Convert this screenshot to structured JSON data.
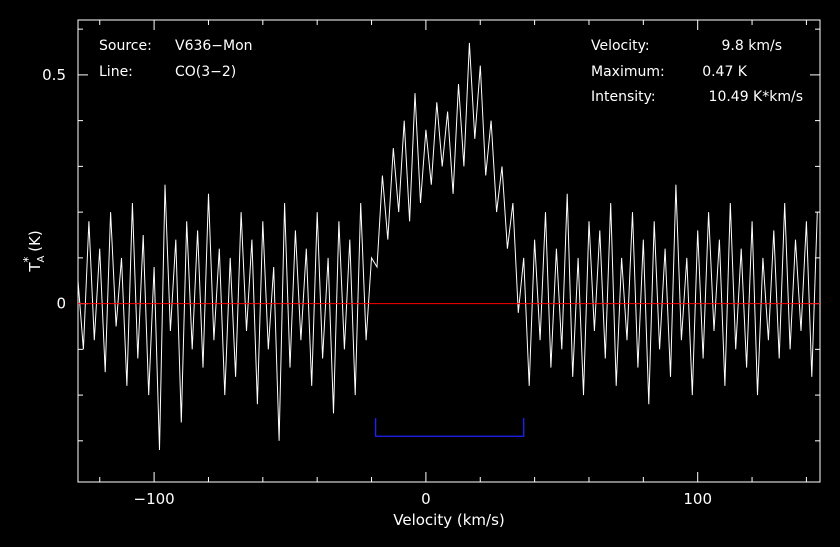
{
  "chart_data": {
    "type": "line",
    "xlabel": "Velocity (km/s)",
    "ylabel_main": "T",
    "ylabel_sub": "A",
    "ylabel_sup": "*",
    "ylabel_unit": " (K)",
    "xlim": [
      -128,
      145
    ],
    "ylim": [
      -0.39,
      0.62
    ],
    "xticks": [
      -100,
      0,
      100
    ],
    "xtick_labels": [
      "−100",
      "0",
      "100"
    ],
    "yticks": [
      0,
      0.5
    ],
    "ytick_labels": [
      "0",
      "0.5"
    ],
    "baseline_y": 0,
    "window": {
      "x_start": -18.5,
      "x_end": 36,
      "y": -0.29,
      "y_top": -0.25
    },
    "info_left": [
      {
        "key": "Source:",
        "value": "V636−Mon"
      },
      {
        "key": "Line:",
        "value": "CO(3−2)"
      }
    ],
    "info_right": [
      {
        "key": "Velocity:",
        "value": "9.8 km/s"
      },
      {
        "key": "Maximum:",
        "value": "0.47 K"
      },
      {
        "key": "Intensity:",
        "value": "10.49 K*km/s"
      }
    ],
    "series": [
      {
        "line_color": "#ffffff",
        "x": [
          -128,
          -126,
          -124,
          -122,
          -120,
          -118,
          -116,
          -114,
          -112,
          -110,
          -108,
          -106,
          -104,
          -102,
          -100,
          -98,
          -96,
          -94,
          -92,
          -90,
          -88,
          -86,
          -84,
          -82,
          -80,
          -78,
          -76,
          -74,
          -72,
          -70,
          -68,
          -66,
          -64,
          -62,
          -60,
          -58,
          -56,
          -54,
          -52,
          -50,
          -48,
          -46,
          -44,
          -42,
          -40,
          -38,
          -36,
          -34,
          -32,
          -30,
          -28,
          -26,
          -24,
          -22,
          -20,
          -18,
          -16,
          -14,
          -12,
          -10,
          -8,
          -6,
          -4,
          -2,
          0,
          2,
          4,
          6,
          8,
          10,
          12,
          14,
          16,
          18,
          20,
          22,
          24,
          26,
          28,
          30,
          32,
          34,
          36,
          38,
          40,
          42,
          44,
          46,
          48,
          50,
          52,
          54,
          56,
          58,
          60,
          62,
          64,
          66,
          68,
          70,
          72,
          74,
          76,
          78,
          80,
          82,
          84,
          86,
          88,
          90,
          92,
          94,
          96,
          98,
          100,
          102,
          104,
          106,
          108,
          110,
          112,
          114,
          116,
          118,
          120,
          122,
          124,
          126,
          128,
          130,
          132,
          134,
          136,
          138,
          140,
          142,
          144
        ],
        "y": [
          0.05,
          -0.1,
          0.18,
          -0.08,
          0.12,
          -0.15,
          0.2,
          -0.05,
          0.1,
          -0.18,
          0.22,
          -0.12,
          0.15,
          -0.2,
          0.08,
          -0.32,
          0.26,
          -0.06,
          0.14,
          -0.26,
          0.18,
          -0.1,
          0.16,
          -0.14,
          0.24,
          -0.08,
          0.12,
          -0.2,
          0.1,
          -0.16,
          0.2,
          -0.06,
          0.14,
          -0.22,
          0.18,
          -0.1,
          0.08,
          -0.3,
          0.22,
          -0.14,
          0.16,
          -0.08,
          0.12,
          -0.18,
          0.2,
          -0.12,
          0.1,
          -0.24,
          0.18,
          -0.1,
          0.14,
          -0.2,
          0.22,
          -0.08,
          0.1,
          0.08,
          0.28,
          0.14,
          0.34,
          0.2,
          0.4,
          0.18,
          0.46,
          0.22,
          0.38,
          0.26,
          0.44,
          0.3,
          0.42,
          0.24,
          0.48,
          0.3,
          0.57,
          0.36,
          0.52,
          0.28,
          0.4,
          0.2,
          0.3,
          0.12,
          0.22,
          -0.02,
          0.1,
          -0.18,
          0.14,
          -0.08,
          0.2,
          -0.14,
          0.12,
          -0.1,
          0.24,
          -0.16,
          0.1,
          -0.2,
          0.18,
          -0.06,
          0.16,
          -0.12,
          0.22,
          -0.18,
          0.1,
          -0.08,
          0.2,
          -0.14,
          0.14,
          -0.22,
          0.18,
          -0.1,
          0.12,
          -0.16,
          0.26,
          -0.08,
          0.1,
          -0.2,
          0.16,
          -0.12,
          0.2,
          -0.06,
          0.14,
          -0.18,
          0.22,
          -0.1,
          0.12,
          -0.14,
          0.18,
          -0.2,
          0.1,
          -0.08,
          0.16,
          -0.12,
          0.22,
          -0.1,
          0.14,
          -0.06,
          0.18,
          -0.16,
          0.2
        ]
      }
    ],
    "baseline_color": "#ff0000",
    "window_color": "#2020ff",
    "frame_color": "#ffffff"
  }
}
